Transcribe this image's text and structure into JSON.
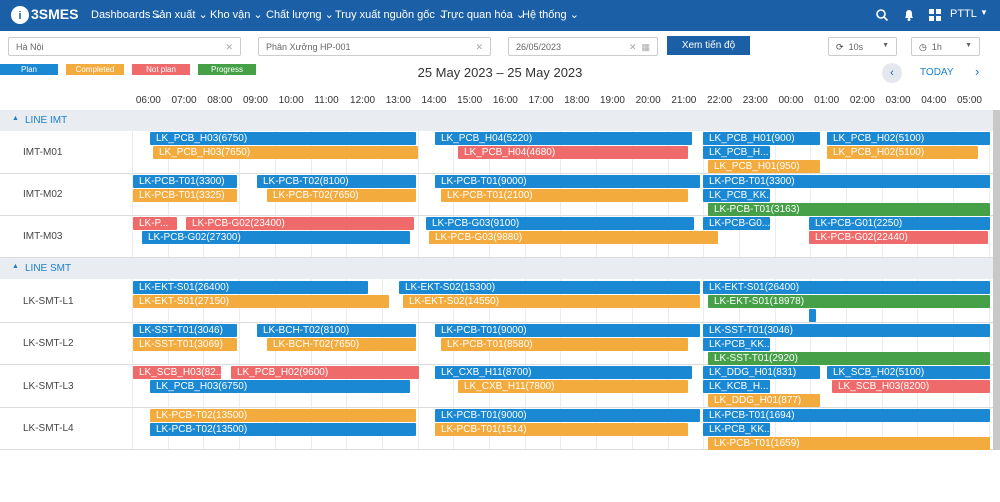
{
  "nav": {
    "logo": "3SMES",
    "items": [
      "Dashboards",
      "Sản xuất",
      "Kho vận",
      "Chất lượng",
      "Truy xuất nguồn gốc",
      "Trực quan hóa",
      "Hệ thống"
    ],
    "user": "PTTL"
  },
  "filters": {
    "factory": "Hà Nội",
    "workshop": "Phân Xưởng HP-001",
    "date": "26/05/2023",
    "button": "Xem tiến độ",
    "refresh": "10s",
    "range": "1h"
  },
  "legend": [
    {
      "label": "Plan",
      "color": "#1a88d3"
    },
    {
      "label": "Completed",
      "color": "#f4ab3d"
    },
    {
      "label": "Not plan",
      "color": "#ef6b6b"
    },
    {
      "label": "Progress",
      "color": "#45a047"
    }
  ],
  "header": {
    "title": "25 May 2023 – 25 May 2023",
    "today": "TODAY"
  },
  "timeline": [
    "06:00",
    "07:00",
    "08:00",
    "09:00",
    "10:00",
    "11:00",
    "12:00",
    "13:00",
    "14:00",
    "15:00",
    "16:00",
    "17:00",
    "18:00",
    "19:00",
    "20:00",
    "21:00",
    "22:00",
    "23:00",
    "00:00",
    "01:00",
    "02:00",
    "03:00",
    "04:00",
    "05:00"
  ],
  "groups": [
    {
      "label": "LINE IMT",
      "rows": [
        {
          "label": "IMT-M01",
          "bars": [
            {
              "text": "LK_PCB_H03(6750)",
              "color": "#1a88d3"
            },
            {
              "text": "LK_PCB_H04(5220)",
              "color": "#1a88d3"
            },
            {
              "text": "LK_PCB_H01(900)",
              "color": "#1a88d3"
            },
            {
              "text": "LK_PCB_H02(5100)",
              "color": "#1a88d3"
            },
            {
              "text": "LK_PCB_H03(7650)",
              "color": "#f4ab3d"
            },
            {
              "text": "LK_PCB_H04(4680)",
              "color": "#ef6b6b"
            },
            {
              "text": "LK_PCB_H...",
              "color": "#1a88d3"
            },
            {
              "text": "LK_PCB_H02(5100)",
              "color": "#f4ab3d"
            },
            {
              "text": "LK_PCB_H01(950)",
              "color": "#f4ab3d"
            }
          ]
        },
        {
          "label": "IMT-M02",
          "bars": [
            {
              "text": "LK-PCB-T01(3300)",
              "color": "#1a88d3"
            },
            {
              "text": "LK-PCB-T02(8100)",
              "color": "#1a88d3"
            },
            {
              "text": "LK-PCB-T01(9000)",
              "color": "#1a88d3"
            },
            {
              "text": "LK-PCB-T01(3300)",
              "color": "#1a88d3"
            },
            {
              "text": "LK-PCB-T01(3325)",
              "color": "#f4ab3d"
            },
            {
              "text": "LK-PCB-T02(7650)",
              "color": "#f4ab3d"
            },
            {
              "text": "LK-PCB-T01(2100)",
              "color": "#f4ab3d"
            },
            {
              "text": "LK_PCB_KK...",
              "color": "#1a88d3"
            },
            {
              "text": "LK-PCB-T01(3163)",
              "color": "#45a047"
            }
          ]
        },
        {
          "label": "IMT-M03",
          "bars": [
            {
              "text": "LK-P...",
              "color": "#ef6b6b"
            },
            {
              "text": "LK-PCB-G02(23400)",
              "color": "#ef6b6b"
            },
            {
              "text": "LK-PCB-G03(9100)",
              "color": "#1a88d3"
            },
            {
              "text": "LK-PCB-G0...",
              "color": "#1a88d3"
            },
            {
              "text": "LK-PCB-G01(2250)",
              "color": "#1a88d3"
            },
            {
              "text": "LK-PCB-G02(27300)",
              "color": "#1a88d3"
            },
            {
              "text": "LK-PCB-G03(9880)",
              "color": "#f4ab3d"
            },
            {
              "text": "LK-PCB-G02(22440)",
              "color": "#ef6b6b"
            }
          ]
        }
      ]
    },
    {
      "label": "LINE SMT",
      "rows": [
        {
          "label": "LK-SMT-L1",
          "bars": [
            {
              "text": "LK-EKT-S01(26400)",
              "color": "#1a88d3"
            },
            {
              "text": "LK-EKT-S02(15300)",
              "color": "#1a88d3"
            },
            {
              "text": "LK-EKT-S01(26400)",
              "color": "#1a88d3"
            },
            {
              "text": "LK-EKT-S01(27150)",
              "color": "#f4ab3d"
            },
            {
              "text": "LK-EKT-S02(14550)",
              "color": "#f4ab3d"
            },
            {
              "text": "LK-EKT-S01(18978)",
              "color": "#45a047"
            },
            {
              "color": "#1a88d3"
            }
          ]
        },
        {
          "label": "LK-SMT-L2",
          "bars": [
            {
              "text": "LK-SST-T01(3046)",
              "color": "#1a88d3"
            },
            {
              "text": "LK-BCH-T02(8100)",
              "color": "#1a88d3"
            },
            {
              "text": "LK-PCB-T01(9000)",
              "color": "#1a88d3"
            },
            {
              "text": "LK-SST-T01(3046)",
              "color": "#1a88d3"
            },
            {
              "text": "LK-SST-T01(3069)",
              "color": "#f4ab3d"
            },
            {
              "text": "LK-BCH-T02(7650)",
              "color": "#f4ab3d"
            },
            {
              "text": "LK-PCB-T01(8580)",
              "color": "#f4ab3d"
            },
            {
              "text": "LK-PCB_KK...",
              "color": "#1a88d3"
            },
            {
              "text": "LK-SST-T01(2920)",
              "color": "#45a047"
            }
          ]
        },
        {
          "label": "LK-SMT-L3",
          "bars": [
            {
              "text": "LK_SCB_H03(82...",
              "color": "#ef6b6b"
            },
            {
              "text": "LK_PCB_H02(9600)",
              "color": "#ef6b6b"
            },
            {
              "text": "LK_CXB_H11(8700)",
              "color": "#1a88d3"
            },
            {
              "text": "LK_DDG_H01(831)",
              "color": "#1a88d3"
            },
            {
              "text": "LK_SCB_H02(5100)",
              "color": "#1a88d3"
            },
            {
              "text": "LK_PCB_H03(6750)",
              "color": "#1a88d3"
            },
            {
              "text": "LK_CXB_H11(7800)",
              "color": "#f4ab3d"
            },
            {
              "text": "LK_KCB_H...",
              "color": "#1a88d3"
            },
            {
              "text": "LK_SCB_H03(8200)",
              "color": "#ef6b6b"
            },
            {
              "text": "LK_DDG_H01(877)",
              "color": "#f4ab3d"
            }
          ]
        },
        {
          "label": "LK-SMT-L4",
          "bars": [
            {
              "text": "LK-PCB-T02(13500)",
              "color": "#f4ab3d"
            },
            {
              "text": "LK-PCB-T01(9000)",
              "color": "#1a88d3"
            },
            {
              "text": "LK-PCB-T01(1694)",
              "color": "#1a88d3"
            },
            {
              "text": "LK-PCB-T02(13500)",
              "color": "#1a88d3"
            },
            {
              "text": "LK-PCB-T01(1514)",
              "color": "#f4ab3d"
            },
            {
              "text": "LK-PCB_KK...",
              "color": "#1a88d3"
            },
            {
              "text": "LK-PCB-T01(1659)",
              "color": "#f4ab3d"
            }
          ]
        }
      ]
    }
  ]
}
